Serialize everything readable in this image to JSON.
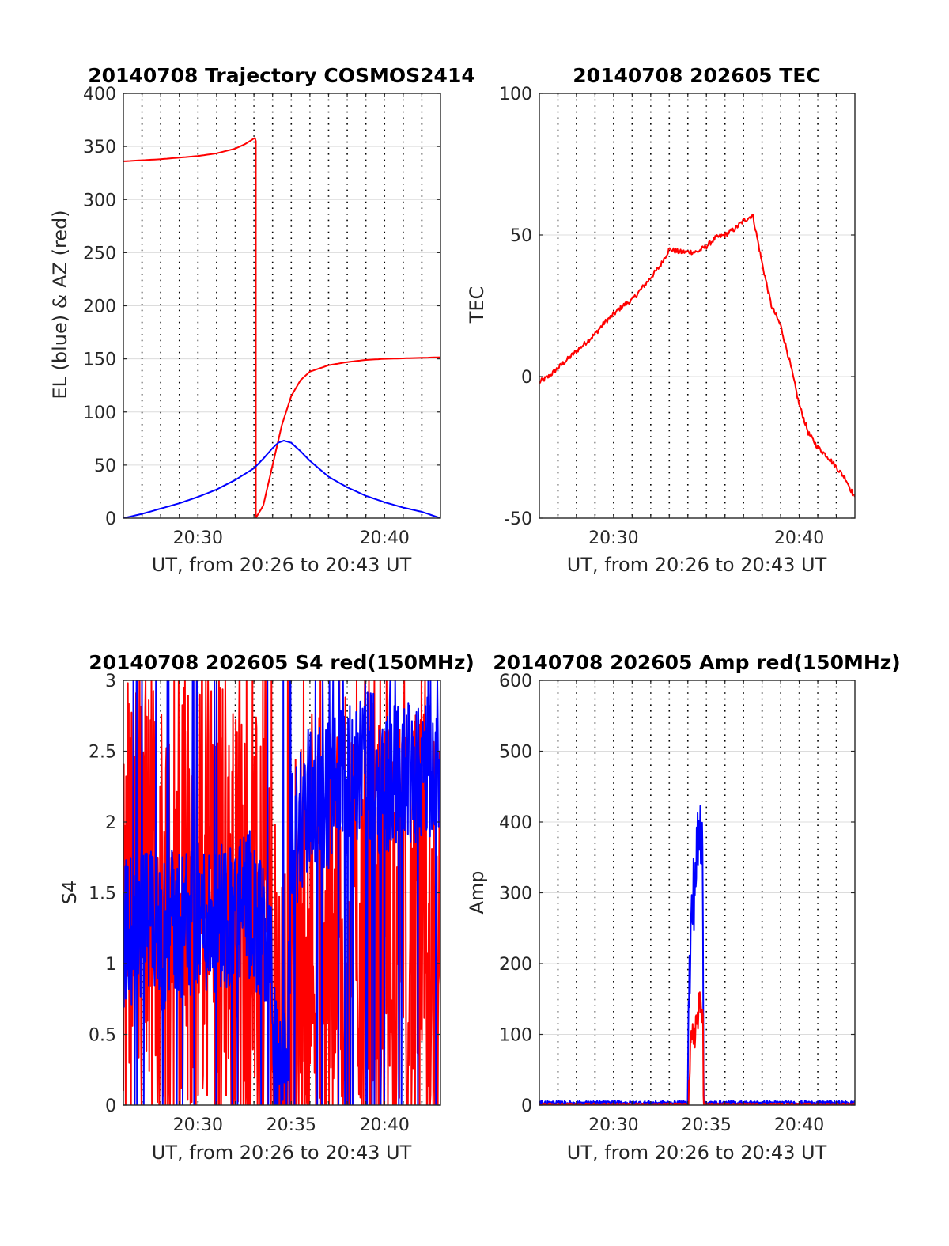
{
  "figure": {
    "background": "#ffffff"
  },
  "chart_data": [
    {
      "id": "traj",
      "type": "line",
      "title": "20140708 Trajectory COSMOS2414",
      "xlabel": "UT, from 20:26 to 20:43 UT",
      "ylabel": "EL (blue) & AZ (red)",
      "xlim": [
        26,
        43
      ],
      "ylim": [
        0,
        400
      ],
      "xticks": [
        {
          "v": 30,
          "label": "20:30"
        },
        {
          "v": 40,
          "label": "20:40"
        }
      ],
      "yticks": [
        {
          "v": 0,
          "label": "0"
        },
        {
          "v": 50,
          "label": "50"
        },
        {
          "v": 100,
          "label": "100"
        },
        {
          "v": 150,
          "label": "150"
        },
        {
          "v": 200,
          "label": "200"
        },
        {
          "v": 250,
          "label": "250"
        },
        {
          "v": 300,
          "label": "300"
        },
        {
          "v": 350,
          "label": "350"
        },
        {
          "v": 400,
          "label": "400"
        }
      ],
      "vgrid_minutes": [
        27,
        28,
        29,
        30,
        31,
        32,
        33,
        34,
        35,
        36,
        37,
        38,
        39,
        40,
        41,
        42
      ],
      "grid": true,
      "series": [
        {
          "color": "#ff0000",
          "x": [
            26,
            27,
            28,
            29,
            30,
            31,
            32,
            32.5,
            33.05,
            33.1,
            33.1,
            33.5,
            34.0,
            34.5,
            35.0,
            35.5,
            36.0,
            37.0,
            38.0,
            39.0,
            40.0,
            41.0,
            42.0,
            43.0
          ],
          "y": [
            336,
            337,
            338,
            339.5,
            341,
            343.5,
            348,
            352,
            358,
            355,
            0,
            12,
            50,
            88,
            115,
            130,
            138,
            144,
            147,
            149,
            150,
            150.5,
            151,
            151.5
          ]
        },
        {
          "color": "#0000ff",
          "x": [
            26,
            27,
            28,
            29,
            30,
            31,
            32,
            33,
            33.5,
            34,
            34.3,
            34.6,
            35,
            35.5,
            36,
            37,
            38,
            39,
            40,
            41,
            42,
            43
          ],
          "y": [
            0,
            4,
            9,
            14,
            20,
            27,
            36,
            47,
            56,
            66,
            71,
            73,
            71,
            63,
            54,
            39,
            29,
            21,
            15,
            10,
            6,
            0
          ]
        }
      ]
    },
    {
      "id": "tec",
      "type": "line",
      "title": "20140708 202605 TEC",
      "xlabel": "UT, from 20:26 to 20:43 UT",
      "ylabel": "TEC",
      "xlim": [
        26,
        43
      ],
      "ylim": [
        -50,
        100
      ],
      "xticks": [
        {
          "v": 30,
          "label": "20:30"
        },
        {
          "v": 40,
          "label": "20:40"
        }
      ],
      "yticks": [
        {
          "v": -50,
          "label": "-50"
        },
        {
          "v": 0,
          "label": "0"
        },
        {
          "v": 50,
          "label": "50"
        },
        {
          "v": 100,
          "label": "100"
        }
      ],
      "vgrid_minutes": [
        27,
        28,
        29,
        30,
        31,
        32,
        33,
        34,
        35,
        36,
        37,
        38,
        39,
        40,
        41,
        42
      ],
      "grid": true,
      "series": [
        {
          "color": "#ff0000",
          "noise": 0.9,
          "x": [
            26,
            26.5,
            27,
            27.5,
            28,
            28.5,
            29,
            29.5,
            30,
            30.5,
            31,
            31.5,
            32,
            32.5,
            33,
            33.5,
            34,
            34.5,
            35,
            35.5,
            36,
            36.5,
            37,
            37.5,
            38,
            38.5,
            39,
            39.5,
            40,
            40.5,
            41,
            41.5,
            42,
            42.5,
            43
          ],
          "y": [
            -2,
            0,
            3,
            6,
            9,
            12,
            15,
            19,
            22,
            25,
            27,
            31,
            35,
            39,
            45,
            44,
            44,
            44,
            46,
            49,
            50,
            52,
            55,
            57,
            40,
            25,
            18,
            5,
            -10,
            -20,
            -25,
            -28,
            -32,
            -36,
            -43
          ]
        }
      ]
    },
    {
      "id": "s4",
      "type": "line",
      "title": "20140708 202605 S4 red(150MHz)",
      "xlabel": "UT, from 20:26 to 20:43 UT",
      "ylabel": "S4",
      "xlim": [
        26,
        43
      ],
      "ylim": [
        0,
        3
      ],
      "xticks": [
        {
          "v": 30,
          "label": "20:30"
        },
        {
          "v": 35,
          "label": "20:35"
        },
        {
          "v": 40,
          "label": "20:40"
        }
      ],
      "yticks": [
        {
          "v": 0,
          "label": "0"
        },
        {
          "v": 0.5,
          "label": "0.5"
        },
        {
          "v": 1,
          "label": "1"
        },
        {
          "v": 1.5,
          "label": "1.5"
        },
        {
          "v": 2,
          "label": "2"
        },
        {
          "v": 2.5,
          "label": "2.5"
        },
        {
          "v": 3,
          "label": "3"
        }
      ],
      "vgrid_minutes": [
        27,
        28,
        29,
        30,
        31,
        32,
        33,
        34,
        35,
        36,
        37,
        38,
        39,
        40,
        41,
        42
      ],
      "grid": true,
      "series": [
        {
          "color": "#ff0000",
          "spread": 1.6,
          "x": [
            26,
            27,
            28,
            29,
            30,
            31,
            32,
            33,
            33.5,
            34,
            34.2,
            34.5,
            34.8,
            35,
            35.5,
            36,
            37,
            38,
            39,
            40,
            41,
            42,
            43
          ],
          "y": [
            1.5,
            1.5,
            1.4,
            1.5,
            1.5,
            1.5,
            1.3,
            1.2,
            1.0,
            0.9,
            0.2,
            0.2,
            0.15,
            0.9,
            1.0,
            1.4,
            1.2,
            1.3,
            1.3,
            1.2,
            1.1,
            1.2,
            1.3
          ]
        },
        {
          "color": "#0000ff",
          "spread": 0.55,
          "x": [
            26,
            27,
            28,
            29,
            30,
            31,
            32,
            33,
            33.5,
            34,
            34.2,
            34.5,
            34.8,
            35,
            35.5,
            36,
            37,
            38,
            39,
            40,
            41,
            42,
            43
          ],
          "y": [
            1.2,
            1.3,
            1.2,
            1.3,
            1.3,
            1.35,
            1.35,
            1.4,
            1.2,
            0.9,
            0.15,
            0.15,
            0.12,
            1.8,
            2.0,
            2.2,
            2.2,
            2.3,
            2.4,
            2.3,
            2.4,
            2.4,
            2.5
          ]
        }
      ]
    },
    {
      "id": "amp",
      "type": "line",
      "title": "20140708 202605 Amp red(150MHz)",
      "xlabel": "UT, from 20:26 to 20:43 UT",
      "ylabel": "Amp",
      "xlim": [
        26,
        43
      ],
      "ylim": [
        0,
        600
      ],
      "xticks": [
        {
          "v": 30,
          "label": "20:30"
        },
        {
          "v": 35,
          "label": "20:35"
        },
        {
          "v": 40,
          "label": "20:40"
        }
      ],
      "yticks": [
        {
          "v": 0,
          "label": "0"
        },
        {
          "v": 100,
          "label": "100"
        },
        {
          "v": 200,
          "label": "200"
        },
        {
          "v": 300,
          "label": "300"
        },
        {
          "v": 400,
          "label": "400"
        },
        {
          "v": 500,
          "label": "500"
        },
        {
          "v": 600,
          "label": "600"
        }
      ],
      "vgrid_minutes": [
        27,
        28,
        29,
        30,
        31,
        32,
        33,
        34,
        35,
        36,
        37,
        38,
        39,
        40,
        41,
        42
      ],
      "grid": true,
      "series": [
        {
          "color": "#0000ff",
          "spread": 60,
          "x": [
            26,
            34.0,
            34.05,
            34.2,
            34.4,
            34.6,
            34.8,
            34.85,
            43
          ],
          "y": [
            3,
            3,
            150,
            260,
            330,
            380,
            400,
            3,
            3
          ]
        },
        {
          "color": "#ff0000",
          "spread": 30,
          "x": [
            26,
            34.05,
            34.1,
            34.3,
            34.5,
            34.7,
            34.8,
            34.85,
            43
          ],
          "y": [
            1,
            1,
            60,
            100,
            120,
            140,
            150,
            1,
            1
          ]
        }
      ]
    }
  ]
}
